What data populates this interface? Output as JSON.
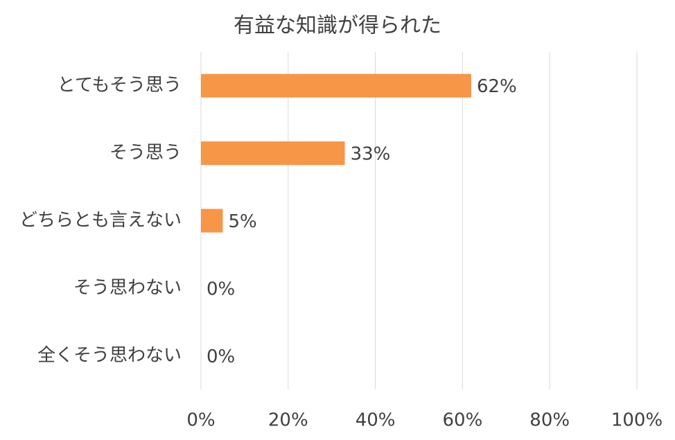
{
  "chart_data": {
    "type": "bar",
    "orientation": "horizontal",
    "title": "有益な知識が得られた",
    "categories": [
      "とてもそう思う",
      "そう思う",
      "どちらとも言えない",
      "そう思わない",
      "全くそう思わない"
    ],
    "values": [
      62,
      33,
      5,
      0,
      0
    ],
    "value_labels": [
      "62%",
      "33%",
      "5%",
      "0%",
      "0%"
    ],
    "color": "#f79646",
    "xlim": [
      0,
      100
    ],
    "xticks": [
      {
        "value": 0,
        "label": "0%"
      },
      {
        "value": 20,
        "label": "20%"
      },
      {
        "value": 40,
        "label": "40%"
      },
      {
        "value": 60,
        "label": "60%"
      },
      {
        "value": 80,
        "label": "80%"
      },
      {
        "value": 100,
        "label": "100%"
      }
    ],
    "grid": true
  }
}
